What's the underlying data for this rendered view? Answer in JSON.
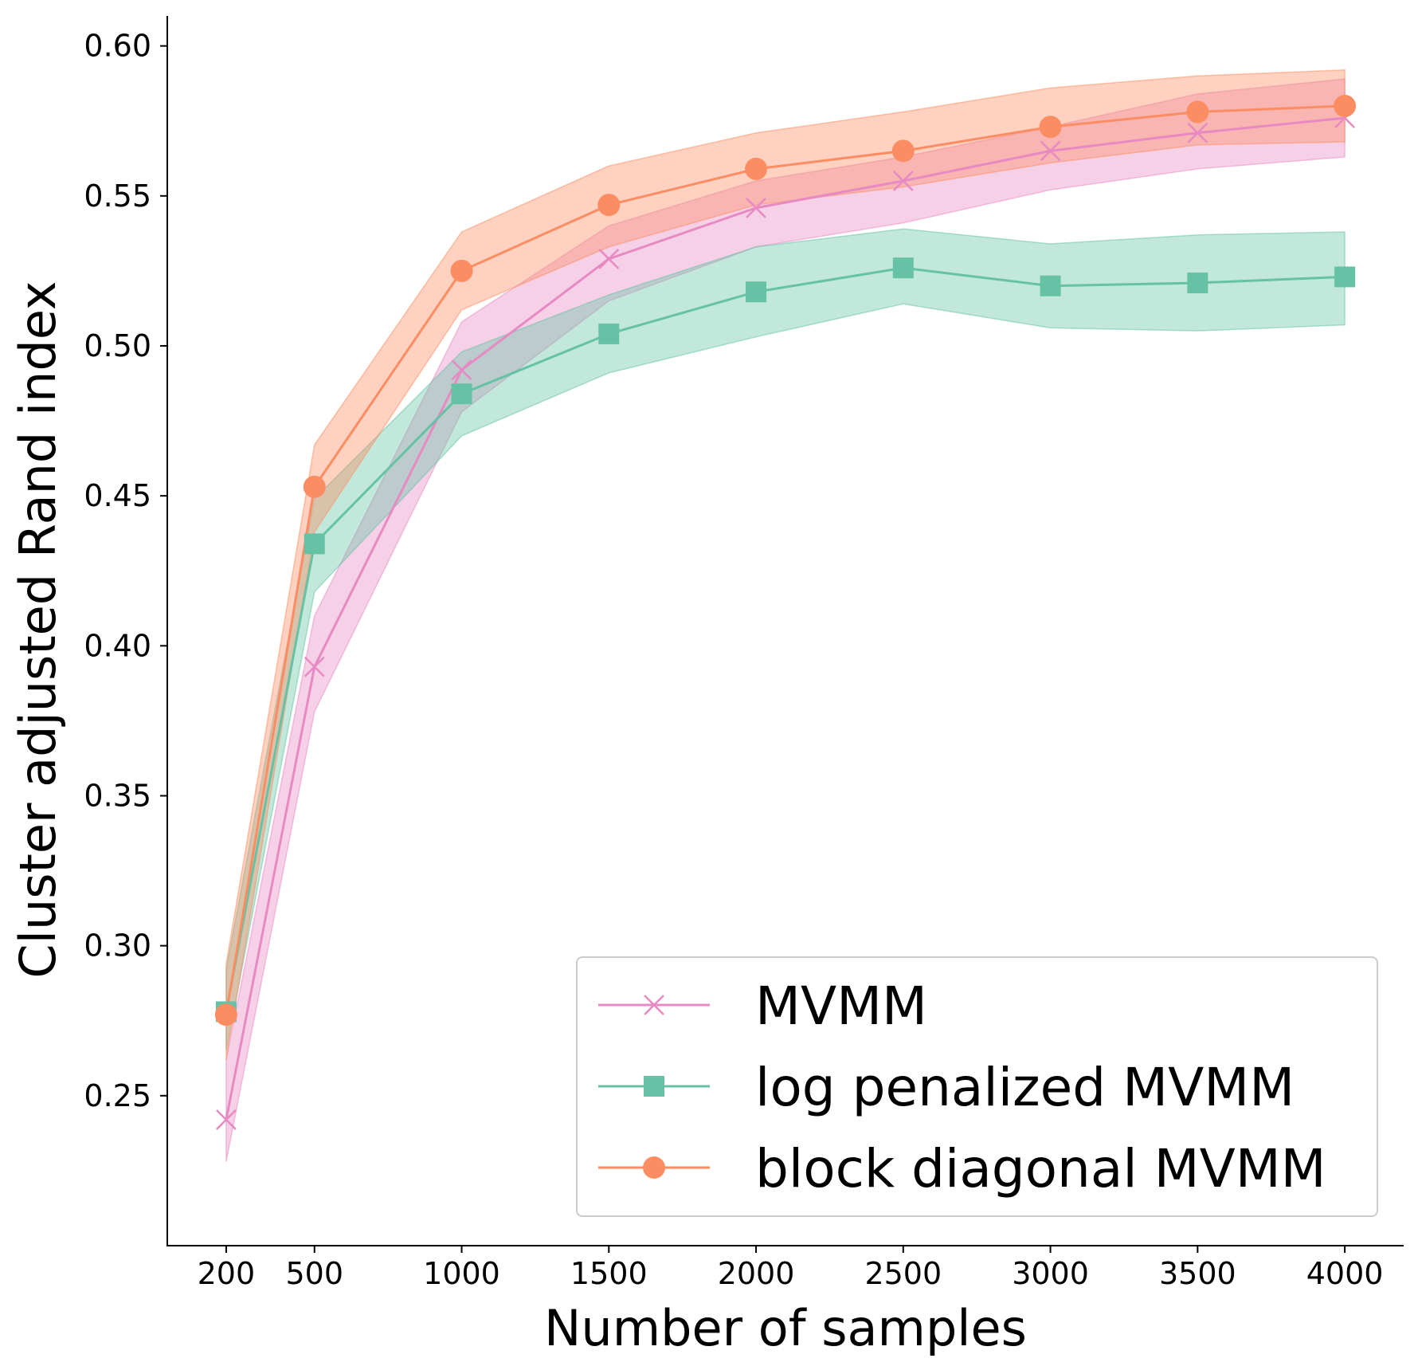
{
  "chart_data": {
    "type": "line",
    "xlabel": "Number of samples",
    "ylabel": "Cluster adjusted Rand index",
    "x": [
      200,
      500,
      1000,
      1500,
      2000,
      2500,
      3000,
      3500,
      4000
    ],
    "xticks": [
      "200",
      "500",
      "1000",
      "1500",
      "2000",
      "2500",
      "3000",
      "3500",
      "4000"
    ],
    "xlim": [
      0,
      4200
    ],
    "yticks": [
      "0.25",
      "0.30",
      "0.35",
      "0.40",
      "0.45",
      "0.50",
      "0.55",
      "0.60"
    ],
    "ylim": [
      0.2,
      0.61
    ],
    "legend_position": "bottom-right",
    "series": [
      {
        "name": "MVMM",
        "color": "#e78ac3",
        "marker": "x",
        "values": [
          0.242,
          0.393,
          0.492,
          0.529,
          0.546,
          0.555,
          0.565,
          0.571,
          0.576
        ],
        "lower": [
          0.228,
          0.378,
          0.478,
          0.515,
          0.533,
          0.541,
          0.552,
          0.559,
          0.563
        ],
        "upper": [
          0.262,
          0.41,
          0.508,
          0.54,
          0.555,
          0.563,
          0.573,
          0.584,
          0.589
        ]
      },
      {
        "name": "log penalized MVMM",
        "color": "#66c2a5",
        "marker": "square",
        "values": [
          0.278,
          0.434,
          0.484,
          0.504,
          0.518,
          0.526,
          0.52,
          0.521,
          0.523
        ],
        "lower": [
          0.265,
          0.418,
          0.47,
          0.491,
          0.503,
          0.514,
          0.506,
          0.505,
          0.507
        ],
        "upper": [
          0.292,
          0.449,
          0.498,
          0.517,
          0.533,
          0.539,
          0.534,
          0.537,
          0.538
        ]
      },
      {
        "name": "block diagonal MVMM",
        "color": "#fc8d62",
        "marker": "circle",
        "values": [
          0.277,
          0.453,
          0.525,
          0.547,
          0.559,
          0.565,
          0.573,
          0.578,
          0.58
        ],
        "lower": [
          0.262,
          0.438,
          0.512,
          0.533,
          0.547,
          0.553,
          0.561,
          0.567,
          0.568
        ],
        "upper": [
          0.294,
          0.467,
          0.538,
          0.56,
          0.571,
          0.578,
          0.586,
          0.59,
          0.592
        ]
      }
    ]
  }
}
